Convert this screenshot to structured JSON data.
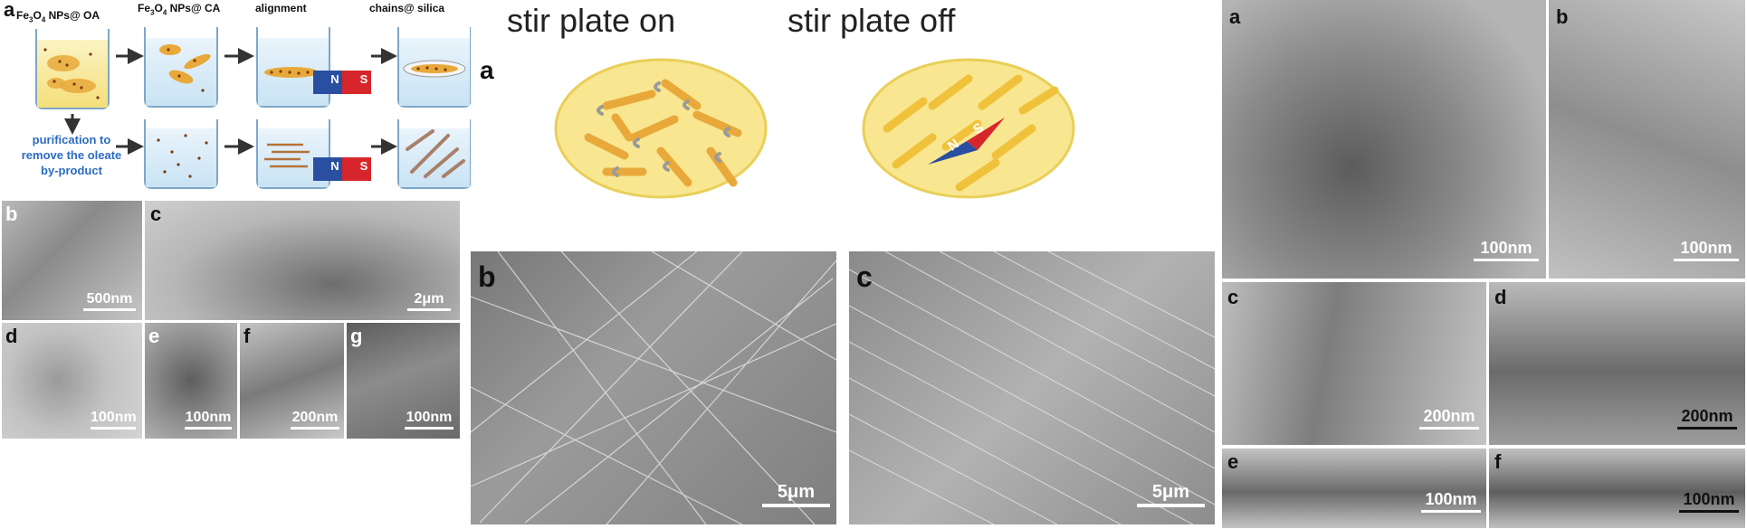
{
  "panel1": {
    "scheme": {
      "label": "a",
      "headers": [
        "Fe3O4 NPs@ OA",
        "Fe3O4 NPs@ CA",
        "alignment",
        "chains@ silica"
      ],
      "header_oa": {
        "pre": "Fe",
        "sub1": "3",
        "mid": "O",
        "sub2": "4",
        "post": " NPs@ OA"
      },
      "header_ca": {
        "pre": "Fe",
        "sub1": "3",
        "mid": "O",
        "sub2": "4",
        "post": " NPs@ CA"
      },
      "header_align": "alignment",
      "header_chains": "chains@ silica",
      "purification": [
        "purification to",
        "remove the oleate",
        "by-product"
      ],
      "magnet_n": "N",
      "magnet_s": "S"
    },
    "tem": [
      {
        "label": "b",
        "scale": "500nm"
      },
      {
        "label": "c",
        "scale": "2μm"
      },
      {
        "label": "d",
        "scale": "100nm"
      },
      {
        "label": "e",
        "scale": "100nm"
      },
      {
        "label": "f",
        "scale": "200nm"
      },
      {
        "label": "g",
        "scale": "100nm"
      }
    ]
  },
  "panel2": {
    "label_a": "a",
    "title_on": "stir plate on",
    "title_off": "stir plate off",
    "sem": [
      {
        "label": "b",
        "scale": "5μm"
      },
      {
        "label": "c",
        "scale": "5μm"
      }
    ],
    "magnet_n": "N",
    "magnet_s": "S"
  },
  "panel3": {
    "tem": [
      {
        "label": "a",
        "scale": "100nm"
      },
      {
        "label": "b",
        "scale": "100nm"
      },
      {
        "label": "c",
        "scale": "200nm"
      },
      {
        "label": "d",
        "scale": "200nm"
      },
      {
        "label": "e",
        "scale": "100nm"
      },
      {
        "label": "f",
        "scale": "100nm"
      }
    ]
  },
  "colors": {
    "magnet_blue": "#2a4fa0",
    "magnet_red": "#d7262b",
    "dish_yellow": "#f7e58a",
    "rod_orange": "#e8a93a",
    "text_blue": "#2b6cc4"
  }
}
